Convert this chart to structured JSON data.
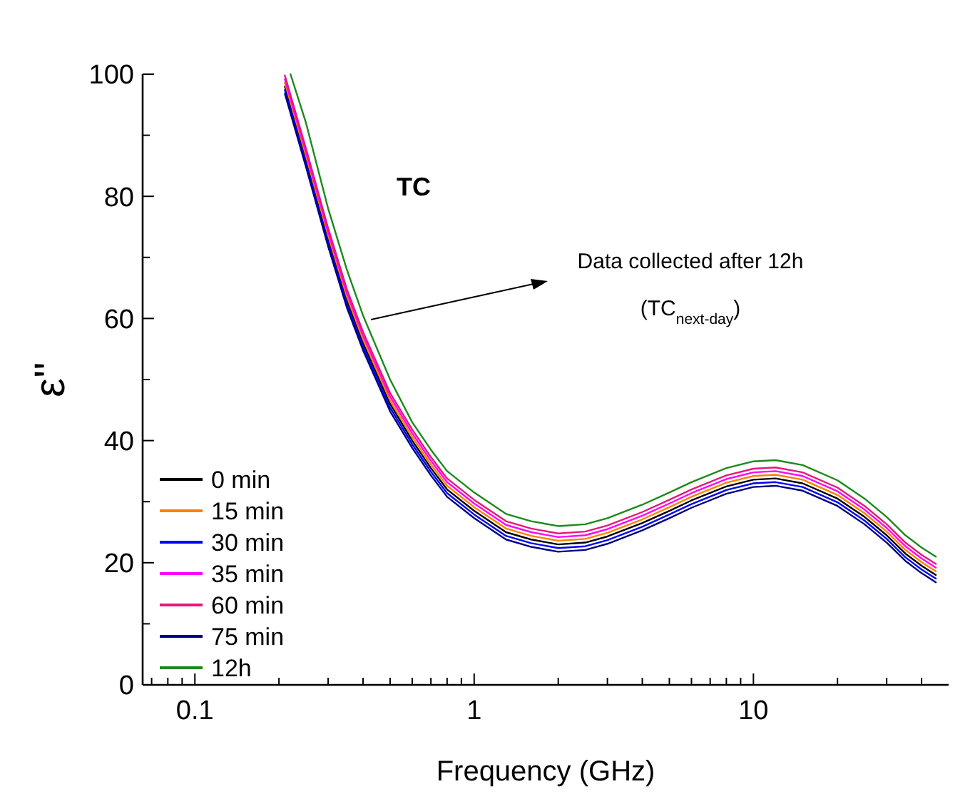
{
  "chart_data": {
    "type": "line",
    "xlabel": "Frequency (GHz)",
    "ylabel": "ε''",
    "log": "x",
    "legend": "bottom left",
    "line_style": "solid",
    "marker": "none",
    "xlim": [
      0.065,
      50
    ],
    "ylim": [
      0,
      100
    ],
    "xticks": [
      {
        "value": 0.07,
        "label": null
      },
      {
        "value": 0.08,
        "label": null
      },
      {
        "value": 0.09,
        "label": null
      },
      {
        "value": 0.1,
        "label": "0.1"
      },
      {
        "value": 0.2,
        "label": null
      },
      {
        "value": 0.3,
        "label": null
      },
      {
        "value": 0.4,
        "label": null
      },
      {
        "value": 0.5,
        "label": null
      },
      {
        "value": 0.6,
        "label": null
      },
      {
        "value": 0.7,
        "label": null
      },
      {
        "value": 0.8,
        "label": null
      },
      {
        "value": 0.9,
        "label": null
      },
      1,
      {
        "value": 2,
        "label": null
      },
      {
        "value": 3,
        "label": null
      },
      {
        "value": 4,
        "label": null
      },
      {
        "value": 5,
        "label": null
      },
      {
        "value": 6,
        "label": null
      },
      {
        "value": 7,
        "label": null
      },
      {
        "value": 8,
        "label": null
      },
      {
        "value": 9,
        "label": null
      },
      10,
      {
        "value": 20,
        "label": null
      },
      {
        "value": 30,
        "label": null
      },
      {
        "value": 40,
        "label": null
      }
    ],
    "yticks": [
      0,
      {
        "value": 10,
        "label": null
      },
      20,
      {
        "value": 30,
        "label": null
      },
      40,
      {
        "value": 50,
        "label": null
      },
      60,
      {
        "value": 70,
        "label": null
      },
      80,
      {
        "value": 90,
        "label": null
      },
      100
    ],
    "x": [
      0.21,
      0.25,
      0.3,
      0.35,
      0.4,
      0.5,
      0.6,
      0.7,
      0.8,
      1,
      1.3,
      1.6,
      2,
      2.5,
      3,
      4,
      5,
      6,
      8,
      10,
      12,
      15,
      20,
      25,
      30,
      35,
      40,
      45
    ],
    "annotations": [
      "TC",
      "Data collected after 12h",
      "(TC$_{next-day}$)"
    ],
    "series": [
      {
        "name": "0 min",
        "color": "#000000",
        "values": [
          98,
          86,
          73,
          63,
          56,
          46,
          40,
          35.5,
          32,
          28.5,
          25,
          23.8,
          23,
          23.3,
          24.3,
          26.5,
          28.5,
          30.2,
          32.5,
          33.6,
          33.8,
          33,
          30.5,
          27.5,
          24.5,
          21.5,
          19.5,
          18
        ]
      },
      {
        "name": "15 min",
        "color": "#ff8000",
        "values": [
          98.6,
          86.6,
          73.6,
          63.6,
          56.6,
          46.6,
          40.6,
          36.1,
          32.6,
          29.1,
          25.6,
          24.4,
          23.6,
          23.9,
          24.9,
          27.1,
          29.1,
          30.8,
          33.1,
          34.2,
          34.4,
          33.6,
          31.1,
          28.1,
          25.1,
          22.1,
          20.1,
          18.6
        ]
      },
      {
        "name": "30 min",
        "color": "#0000ff",
        "values": [
          97.4,
          85.4,
          72.4,
          62.4,
          55.4,
          45.4,
          39.4,
          34.9,
          31.4,
          27.9,
          24.4,
          23.2,
          22.4,
          22.7,
          23.7,
          25.9,
          27.9,
          29.6,
          31.9,
          33,
          33.2,
          32.4,
          29.9,
          26.9,
          23.9,
          20.9,
          18.9,
          17.4
        ]
      },
      {
        "name": "35 min",
        "color": "#ff00ff",
        "values": [
          99.2,
          87.2,
          74.2,
          64.2,
          57.2,
          47.2,
          41.2,
          36.7,
          33.2,
          29.7,
          26.2,
          25,
          24.2,
          24.5,
          25.5,
          27.7,
          29.7,
          31.4,
          33.7,
          34.8,
          35,
          34.2,
          31.7,
          28.7,
          25.7,
          22.7,
          20.7,
          19.2
        ]
      },
      {
        "name": "60 min",
        "color": "#e8177a",
        "values": [
          99.8,
          87.8,
          74.8,
          64.8,
          57.8,
          47.8,
          41.8,
          37.3,
          33.8,
          30.3,
          26.8,
          25.6,
          24.8,
          25.1,
          26.1,
          28.3,
          30.3,
          32,
          34.3,
          35.4,
          35.6,
          34.8,
          32.3,
          29.3,
          26.3,
          23.3,
          21.3,
          19.8
        ]
      },
      {
        "name": "75 min",
        "color": "#000080",
        "values": [
          96.8,
          84.8,
          71.8,
          61.8,
          54.8,
          44.8,
          38.8,
          34.3,
          30.8,
          27.3,
          23.8,
          22.6,
          21.8,
          22.1,
          23.1,
          25.3,
          27.3,
          29,
          31.3,
          32.4,
          32.6,
          31.8,
          29.3,
          26.3,
          23.3,
          20.3,
          18.3,
          16.8
        ]
      },
      {
        "name": "12h",
        "color": "#1a8a1a",
        "x": [
          0.22,
          0.25,
          0.3,
          0.35,
          0.4,
          0.5,
          0.6,
          0.7,
          0.8,
          1,
          1.3,
          1.6,
          2,
          2.5,
          3,
          4,
          5,
          6,
          8,
          10,
          12,
          15,
          20,
          25,
          30,
          35,
          40,
          45
        ],
        "values": [
          100,
          92,
          78,
          68,
          60.5,
          50,
          43,
          38.5,
          35,
          31.5,
          28,
          26.8,
          26,
          26.3,
          27.3,
          29.5,
          31.5,
          33.2,
          35.5,
          36.6,
          36.8,
          36,
          33.5,
          30.5,
          27.5,
          24.5,
          22.5,
          21
        ]
      }
    ]
  }
}
